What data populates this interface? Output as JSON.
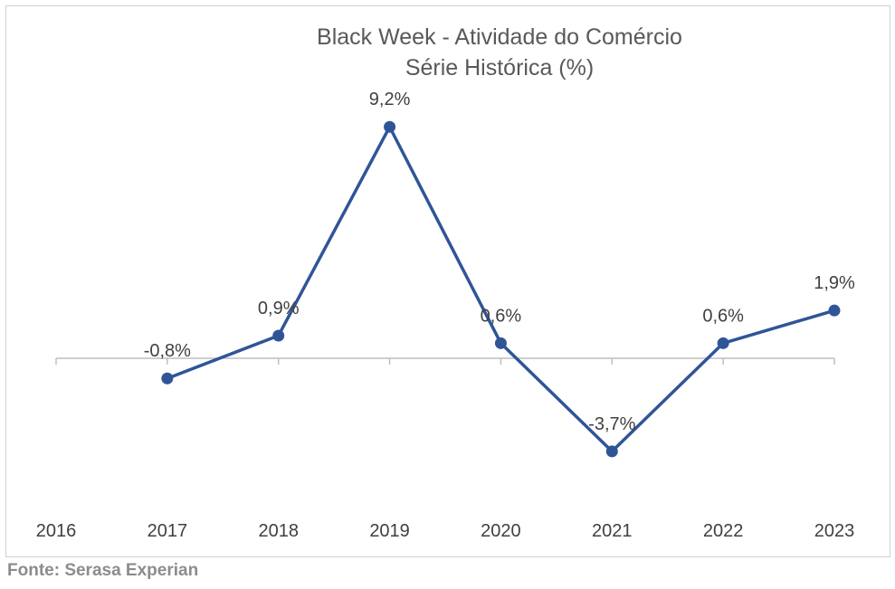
{
  "chart_data": {
    "type": "line",
    "title": "Black Week - Atividade do Comércio",
    "subtitle": "Série Histórica (%)",
    "categories": [
      "2016",
      "2017",
      "2018",
      "2019",
      "2020",
      "2021",
      "2022",
      "2023"
    ],
    "series": [
      {
        "values": [
          null,
          -0.8,
          0.9,
          9.2,
          0.6,
          -3.7,
          0.6,
          1.9
        ],
        "labels": [
          "",
          "-0,8%",
          "0,9%",
          "9,2%",
          "0,6%",
          "-3,7%",
          "0,6%",
          "1,9%"
        ],
        "color": "#2f5597"
      }
    ],
    "ylim": [
      -6,
      11
    ],
    "grid": false,
    "legend": "none"
  },
  "footer": {
    "source": "Fonte: Serasa Experian"
  }
}
